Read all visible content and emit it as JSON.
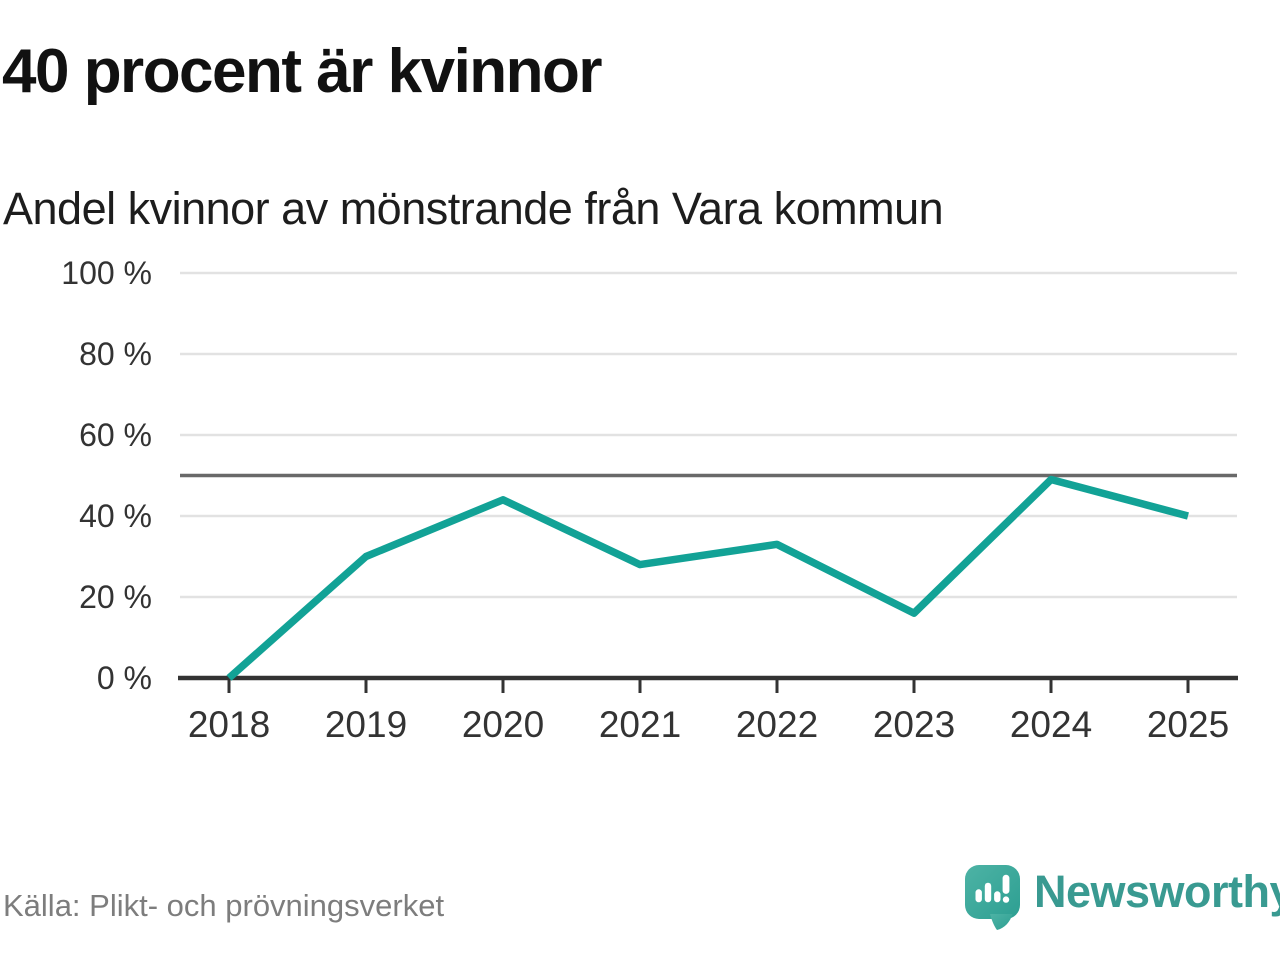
{
  "header": {
    "title": "40 procent är kvinnor",
    "subtitle": "Andel kvinnor av mönstrande från Vara kommun"
  },
  "chart_data": {
    "type": "line",
    "title": "40 procent är kvinnor",
    "subtitle": "Andel kvinnor av mönstrande från Vara kommun",
    "categories": [
      "2018",
      "2019",
      "2020",
      "2021",
      "2022",
      "2023",
      "2024",
      "2025"
    ],
    "series": [
      {
        "name": "Andel kvinnor av mönstrande",
        "values": [
          0,
          30,
          44,
          28,
          33,
          16,
          49,
          40
        ]
      }
    ],
    "unit": "%",
    "ylim": [
      0,
      100
    ],
    "yticks": [
      0,
      20,
      40,
      60,
      80,
      100
    ],
    "ytick_labels": [
      "0 %",
      "20 %",
      "40 %",
      "60 %",
      "80 %",
      "100 %"
    ],
    "reference_line_value": 50,
    "grid": "horizontal",
    "legend": "none",
    "line_color": "#12a296"
  },
  "footer": {
    "source": "Källa: Plikt- och prövningsverket",
    "brand_name": "Newsworthy"
  },
  "icons": {
    "brand_logo": "newsworthy-speech-bubble-bar-chart-icon"
  },
  "colors": {
    "accent_line": "#12a296",
    "brand_text": "#399a91",
    "brand_icon_light": "#4db3a5",
    "brand_icon_dark": "#2d9f92",
    "gridline": "#e2e2e2",
    "reference_line": "#696969",
    "axis": "#333333",
    "title_text": "#111111",
    "subtitle_text": "#1d1d1d",
    "tick_text": "#333333",
    "source_text": "#7d7d7d",
    "background": "#ffffff"
  }
}
